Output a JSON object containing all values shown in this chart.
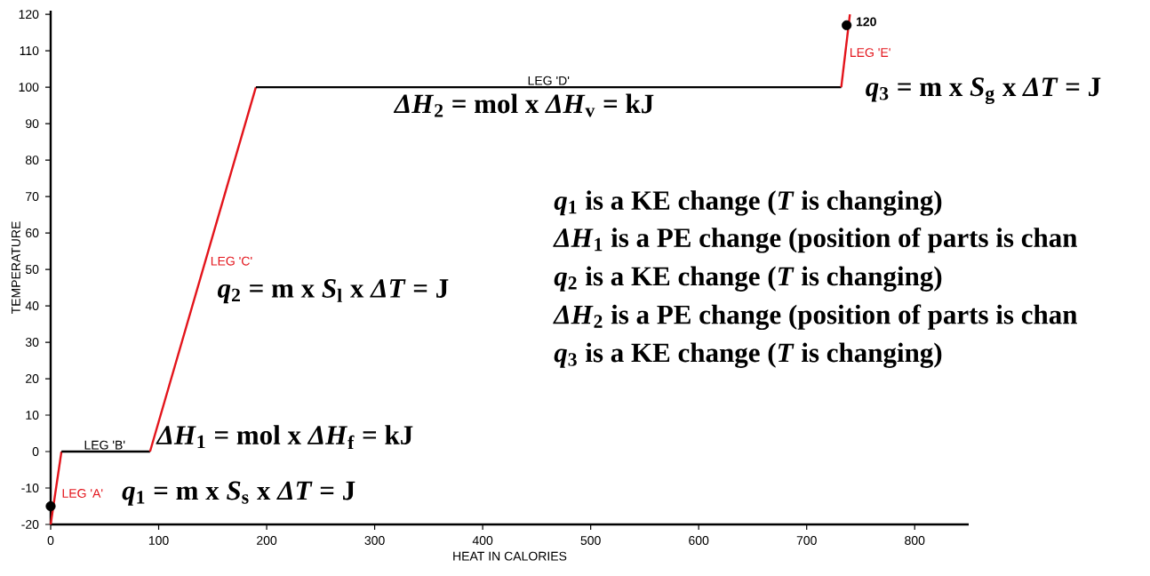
{
  "chart_data": {
    "type": "line",
    "xlabel": "HEAT IN CALORIES",
    "ylabel": "TEMPERATURE",
    "xlim": [
      0,
      850
    ],
    "ylim": [
      -20,
      121
    ],
    "xticks": [
      0,
      100,
      200,
      300,
      400,
      500,
      600,
      700,
      800
    ],
    "yticks": [
      -20,
      -10,
      0,
      10,
      20,
      30,
      40,
      50,
      60,
      70,
      80,
      90,
      100,
      110,
      120
    ],
    "series": [
      {
        "color": "#e3141b",
        "x": [
          0,
          10
        ],
        "values": [
          -20,
          0
        ]
      },
      {
        "color": "#000000",
        "x": [
          10,
          92
        ],
        "values": [
          0,
          0
        ]
      },
      {
        "color": "#e3141b",
        "x": [
          92,
          190
        ],
        "values": [
          0,
          100
        ]
      },
      {
        "color": "#000000",
        "x": [
          190,
          732
        ],
        "values": [
          100,
          100
        ]
      },
      {
        "color": "#e3141b",
        "x": [
          732,
          740
        ],
        "values": [
          100,
          120
        ]
      },
      {
        "type": "scatter",
        "color": "#000000",
        "marker": "circle",
        "x": [
          0,
          737
        ],
        "values": [
          -15,
          117
        ]
      }
    ],
    "annotations": [
      {
        "text": "LEG 'A'",
        "x": 5,
        "y": -10
      },
      {
        "text": "LEG 'B'",
        "x": 50,
        "y": 0
      },
      {
        "text": "LEG 'C'",
        "x": 141,
        "y": 50
      },
      {
        "text": "LEG 'D'",
        "x": 461,
        "y": 100
      },
      {
        "text": "LEG 'E'",
        "x": 736,
        "y": 110
      },
      {
        "text": "120",
        "x": 737,
        "y": 117
      },
      "*q*$_{1}$ = m x *S*$_{s}$ x *ΔT*  = J",
      "*ΔH*$_{1}$ = mol x *ΔH*$_{f}$ = kJ",
      "*q*$_{2}$ = m x *S*$_{l}$ x *ΔT*  = J",
      "*ΔH*$_{2}$ = mol x *ΔH*$_{v}$ = kJ",
      "*q*$_{3}$ = m x *S*$_{g}$ x *ΔT*  = J",
      "*q*$_{1}$ is a KE change (*T* is changing)",
      "*ΔH*$_{1}$ is a PE change (position of parts is chan",
      "*q*$_{2}$ is a KE change (*T* is changing)",
      "*ΔH*$_{2}$ is a PE change (position of parts is chan",
      "*q*$_{3}$ is a KE change (*T* is changing)"
    ]
  }
}
